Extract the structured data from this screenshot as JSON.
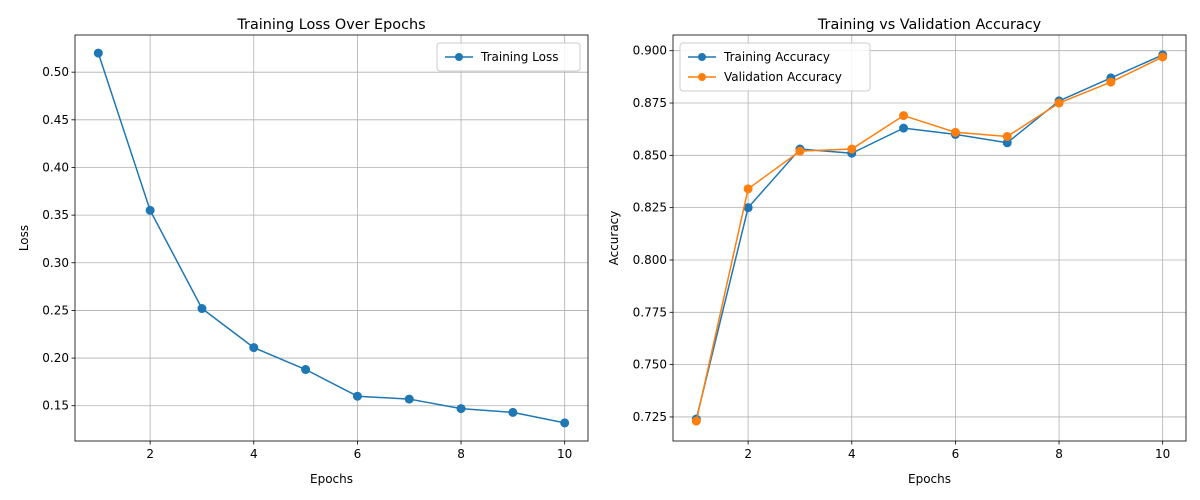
{
  "chart_data": [
    {
      "type": "line",
      "title": "Training Loss Over Epochs",
      "xlabel": "Epochs",
      "ylabel": "Loss",
      "xlim": [
        0.55,
        10.45
      ],
      "ylim": [
        0.113,
        0.539
      ],
      "xticks": [
        2,
        4,
        6,
        8,
        10
      ],
      "yticks": [
        0.15,
        0.2,
        0.25,
        0.3,
        0.35,
        0.4,
        0.45,
        0.5
      ],
      "ytick_labels": [
        "0.15",
        "0.20",
        "0.25",
        "0.30",
        "0.35",
        "0.40",
        "0.45",
        "0.50"
      ],
      "grid": true,
      "legend_position": "upper-right",
      "x": [
        1,
        2,
        3,
        4,
        5,
        6,
        7,
        8,
        9,
        10
      ],
      "series": [
        {
          "name": "Training Loss",
          "color": "#1f77b4",
          "values": [
            0.52,
            0.355,
            0.252,
            0.211,
            0.188,
            0.16,
            0.157,
            0.147,
            0.143,
            0.132
          ]
        }
      ]
    },
    {
      "type": "line",
      "title": "Training vs Validation Accuracy",
      "xlabel": "Epochs",
      "ylabel": "Accuracy",
      "xlim": [
        0.55,
        10.45
      ],
      "ylim": [
        0.7135,
        0.9075
      ],
      "xticks": [
        2,
        4,
        6,
        8,
        10
      ],
      "yticks": [
        0.725,
        0.75,
        0.775,
        0.8,
        0.825,
        0.85,
        0.875,
        0.9
      ],
      "ytick_labels": [
        "0.725",
        "0.750",
        "0.775",
        "0.800",
        "0.825",
        "0.850",
        "0.875",
        "0.900"
      ],
      "grid": true,
      "legend_position": "upper-left",
      "x": [
        1,
        2,
        3,
        4,
        5,
        6,
        7,
        8,
        9,
        10
      ],
      "series": [
        {
          "name": "Training Accuracy",
          "color": "#1f77b4",
          "values": [
            0.724,
            0.825,
            0.853,
            0.851,
            0.863,
            0.86,
            0.856,
            0.876,
            0.887,
            0.898
          ]
        },
        {
          "name": "Validation Accuracy",
          "color": "#ff7f0e",
          "values": [
            0.723,
            0.834,
            0.852,
            0.853,
            0.869,
            0.861,
            0.859,
            0.875,
            0.885,
            0.897
          ]
        }
      ]
    }
  ]
}
